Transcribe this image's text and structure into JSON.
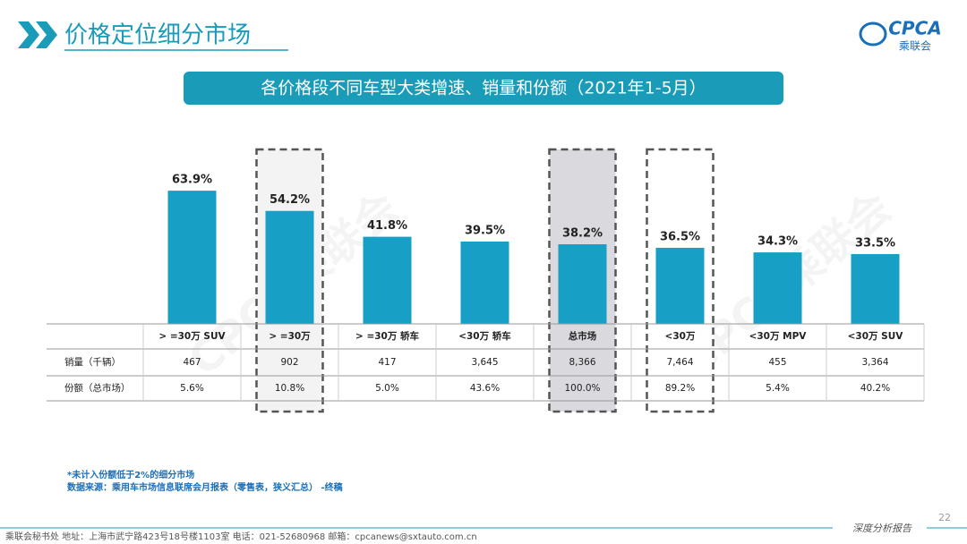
{
  "header": {
    "title": "价格定位细分市场",
    "logo_text": "CPCA",
    "logo_subtext": "乘联会"
  },
  "chart_data": {
    "type": "bar",
    "title": "各价格段不同车型大类增速、销量和份额（2021年1-5月）",
    "categories": [
      "> =30万 SUV",
      "> =30万",
      "> =30万 轿车",
      "<30万 轿车",
      "总市场",
      "<30万",
      "<30万 MPV",
      "<30万 SUV"
    ],
    "values": [
      63.9,
      54.2,
      41.8,
      39.5,
      38.2,
      36.5,
      34.3,
      33.5
    ],
    "value_labels": [
      "63.9%",
      "54.2%",
      "41.8%",
      "39.5%",
      "38.2%",
      "36.5%",
      "34.3%",
      "33.5%"
    ],
    "color": "#179fc5"
  },
  "table": {
    "row_headers": [
      "销量（千辆）",
      "份额（总市场）"
    ],
    "rows": [
      [
        "467",
        "902",
        "417",
        "3,645",
        "8,366",
        "7,464",
        "455",
        "3,364"
      ],
      [
        "5.6%",
        "10.8%",
        "5.0%",
        "43.6%",
        "100.0%",
        "89.2%",
        "5.4%",
        "40.2%"
      ]
    ]
  },
  "notes": [
    "*未计入份额低于2%的细分市场",
    "数据来源：乘用车市场信息联席会月报表（零售表，狭义汇总）  -终稿"
  ],
  "watermark": "CPCA乘联会",
  "footer": {
    "text": "乘联会秘书处   地址：上海市武宁路423号18号楼1103室   电话：021-52680968   邮箱：cpcanews@sxtauto.com.cn",
    "tag": "深度分析报告",
    "page": "22"
  }
}
